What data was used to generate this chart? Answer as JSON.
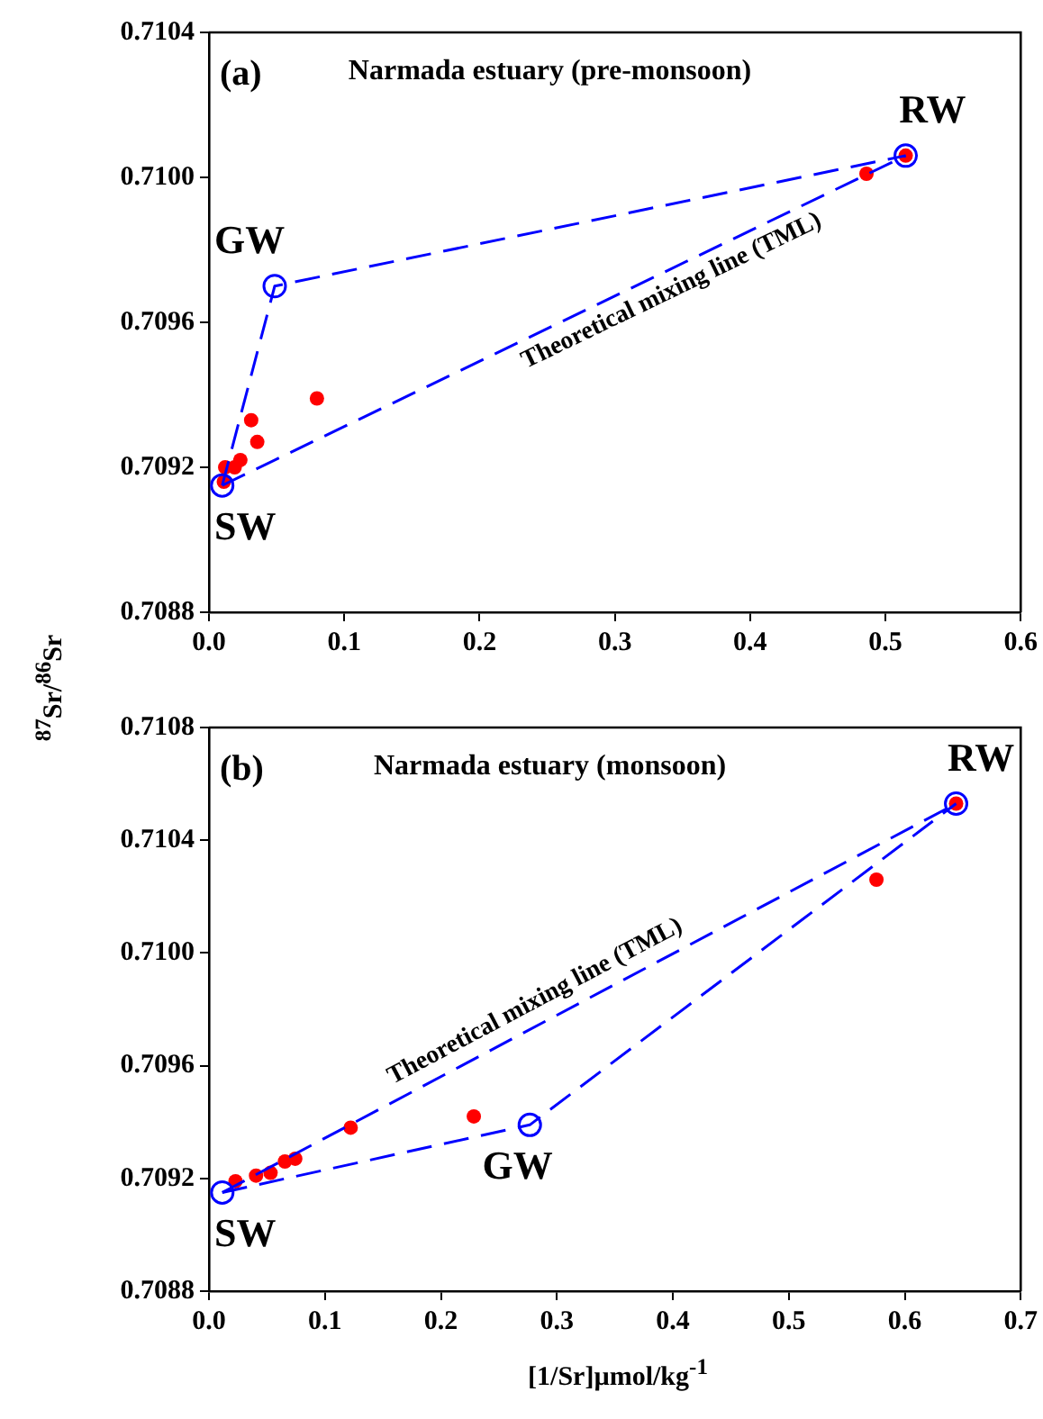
{
  "chart_data": [
    {
      "type": "scatter",
      "title": "Narmada estuary (pre-monsoon)",
      "ylabel": "$^{87}$Sr/$^{86}$Sr",
      "xlim": [
        0,
        0.6
      ],
      "ylim": [
        0.7088,
        0.7104
      ],
      "xticks": [
        {
          "value": 0,
          "label": "0.0"
        },
        {
          "value": 0.1,
          "label": "0.1"
        },
        {
          "value": 0.2,
          "label": "0.2"
        },
        {
          "value": 0.3,
          "label": "0.3"
        },
        {
          "value": 0.4,
          "label": "0.4"
        },
        {
          "value": 0.5,
          "label": "0.5"
        },
        {
          "value": 0.6,
          "label": "0.6"
        }
      ],
      "yticks": [
        0.7088,
        0.7092,
        0.7096,
        {
          "value": 0.71,
          "label": "0.7100"
        },
        0.7104
      ],
      "grid": false,
      "legend": false,
      "series": [
        {
          "type": "line",
          "color": "#0000ff",
          "line_style": "dashed",
          "marker": "circle",
          "x": [
            0.0098,
            0.0486,
            0.515
          ],
          "values": [
            0.70915,
            0.7097,
            0.71006
          ]
        },
        {
          "type": "line",
          "color": "#0000ff",
          "line_style": "dashed",
          "marker": "none",
          "x": [
            0.0098,
            0.515
          ],
          "values": [
            0.70915,
            0.71006
          ]
        },
        {
          "type": "scatter",
          "color": "#ff0000",
          "marker": "circle",
          "x": [
            0.486,
            0.515,
            0.0798,
            0.0312,
            0.0357,
            0.0232,
            0.019,
            0.012,
            0.011
          ],
          "values": [
            0.71001,
            0.71006,
            0.70939,
            0.70933,
            0.70927,
            0.70922,
            0.7092,
            0.7092,
            0.70916
          ]
        }
      ],
      "annotations": [
        "(a)",
        {
          "text": "RW",
          "x": 0.515,
          "y": 0.71006
        },
        {
          "text": "GW",
          "x": 0.0486,
          "y": 0.7097
        },
        {
          "text": "SW",
          "x": 0.0098,
          "y": 0.70915
        },
        {
          "text": "Theoretical mixing line (TML)",
          "x": 0.335,
          "y": 0.70974
        }
      ]
    },
    {
      "type": "scatter",
      "title": "Narmada estuary (monsoon)",
      "xlabel": "[1/Sr]µmol/kg$^{-1}$",
      "xlim": [
        0,
        0.7
      ],
      "ylim": [
        0.7088,
        0.7108
      ],
      "xticks": [
        {
          "value": 0,
          "label": "0.0"
        },
        {
          "value": 0.1,
          "label": "0.1"
        },
        {
          "value": 0.2,
          "label": "0.2"
        },
        {
          "value": 0.3,
          "label": "0.3"
        },
        {
          "value": 0.4,
          "label": "0.4"
        },
        {
          "value": 0.5,
          "label": "0.5"
        },
        {
          "value": 0.6,
          "label": "0.6"
        },
        {
          "value": 0.7,
          "label": "0.7"
        }
      ],
      "yticks": [
        0.7088,
        0.7092,
        0.7096,
        {
          "value": 0.71,
          "label": "0.7100"
        },
        0.7104,
        0.7108
      ],
      "grid": false,
      "legend": false,
      "series": [
        {
          "type": "line",
          "color": "#0000ff",
          "line_style": "dashed",
          "marker": "circle",
          "x": [
            0.0115,
            0.2767,
            0.6443
          ],
          "values": [
            0.70915,
            0.70939,
            0.71053
          ]
        },
        {
          "type": "line",
          "color": "#0000ff",
          "line_style": "dashed",
          "marker": "none",
          "x": [
            0.0115,
            0.6443
          ],
          "values": [
            0.70915,
            0.71053
          ]
        },
        {
          "type": "scatter",
          "color": "#ff0000",
          "marker": "circle",
          "x": [
            0.6443,
            0.5756,
            0.2284,
            0.1222,
            0.0744,
            0.0655,
            0.0531,
            0.0406,
            0.0229
          ],
          "values": [
            0.71053,
            0.71026,
            0.70942,
            0.70938,
            0.70927,
            0.70926,
            0.70922,
            0.70921,
            0.70919
          ]
        }
      ],
      "annotations": [
        "(b)",
        {
          "text": "RW",
          "x": 0.6443,
          "y": 0.71053
        },
        {
          "text": "SW",
          "x": 0.0115,
          "y": 0.70915
        },
        {
          "text": "GW",
          "x": 0.2767,
          "y": 0.70939
        },
        {
          "text": "Theoretical mixing line (TML)",
          "x": 0.29,
          "y": 0.70976
        }
      ]
    }
  ]
}
